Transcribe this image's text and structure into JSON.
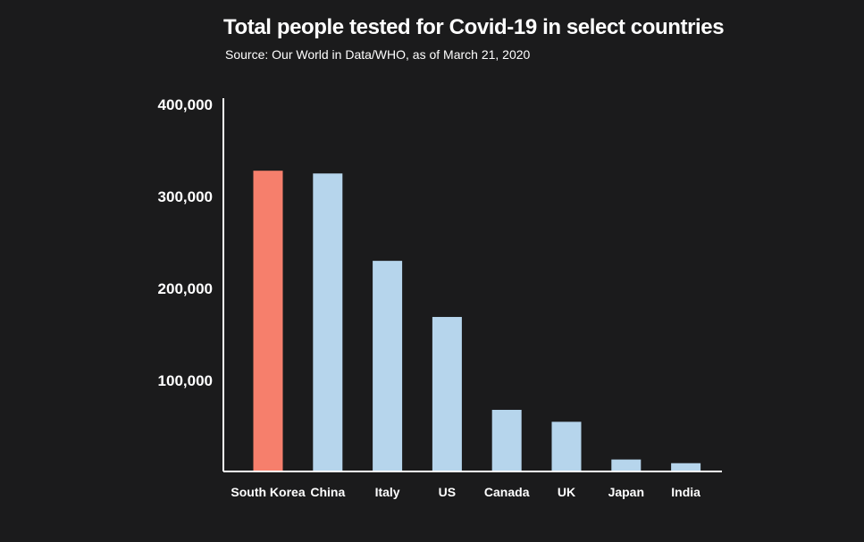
{
  "chart_data": {
    "type": "bar",
    "title": "Total people tested for Covid-19 in select countries",
    "subtitle": "Source: Our World in Data/WHO, as of March 21, 2020",
    "xlabel": "",
    "ylabel": "",
    "categories": [
      "South Korea",
      "China",
      "Italy",
      "US",
      "Canada",
      "UK",
      "Japan",
      "India"
    ],
    "values": [
      327000,
      324000,
      229000,
      168000,
      67000,
      54000,
      13000,
      9000
    ],
    "ylim": [
      0,
      400000
    ],
    "yticks": [
      100000,
      200000,
      300000,
      400000
    ],
    "ytick_labels": [
      "100,000",
      "200,000",
      "300,000",
      "400,000"
    ],
    "grid": false,
    "legend": "none",
    "colors": {
      "highlight": "#f67f6c",
      "default": "#b6d5ec",
      "background": "#1b1b1c",
      "axis": "#ffffff"
    },
    "highlight_index": 0
  }
}
